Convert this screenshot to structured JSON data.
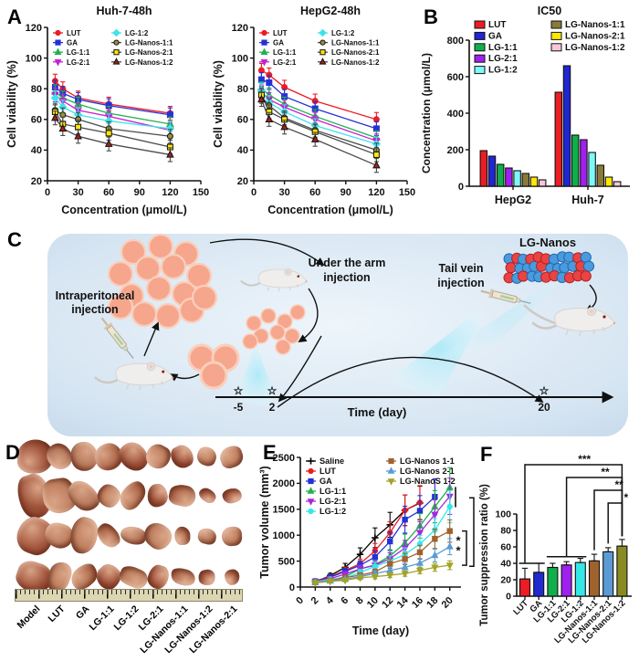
{
  "panels": {
    "a": "A",
    "b": "B",
    "c": "C",
    "d": "D",
    "e": "E",
    "f": "F"
  },
  "chart_data": [
    {
      "id": "huh7",
      "type": "line",
      "title": "Huh-7-48h",
      "xlabel": "Concentration (μmol/L)",
      "ylabel": "Cell viability (%)",
      "xlim": [
        0,
        150
      ],
      "xticks": [
        0,
        30,
        60,
        90,
        120,
        150
      ],
      "ylim": [
        20,
        120
      ],
      "yticks": [
        20,
        40,
        60,
        80,
        100,
        120
      ],
      "x": [
        7.5,
        15,
        30,
        60,
        120
      ],
      "err": 4.5,
      "legend_split": 4,
      "series": [
        {
          "name": "LUT",
          "color": "#ed1c24",
          "marker": "circle",
          "y": [
            85,
            80,
            74,
            70,
            64
          ]
        },
        {
          "name": "GA",
          "color": "#2432d5",
          "marker": "square",
          "y": [
            81,
            77,
            73,
            69,
            63
          ]
        },
        {
          "name": "LG-1:1",
          "color": "#22b14c",
          "marker": "triangle-up",
          "y": [
            78,
            74,
            70,
            64,
            57
          ]
        },
        {
          "name": "LG-2:1",
          "color": "#c71fd6",
          "marker": "triangle-down",
          "y": [
            76,
            72,
            66,
            62,
            53
          ]
        },
        {
          "name": "LG-1:2",
          "color": "#3fe3ea",
          "marker": "diamond",
          "y": [
            74,
            68,
            63,
            59,
            54
          ]
        },
        {
          "name": "LG-Nanos-1:1",
          "color": "#9a8f3d",
          "line": "#4a4a4a",
          "edge": "#111",
          "marker": "circle",
          "y": [
            66,
            63,
            60,
            54,
            49
          ]
        },
        {
          "name": "LG-Nanos-2:1",
          "color": "#ffe800",
          "line": "#4a4a4a",
          "edge": "#111",
          "marker": "square",
          "y": [
            65,
            57,
            55,
            51,
            42
          ]
        },
        {
          "name": "LG-Nanos-1:2",
          "color": "#a32020",
          "line": "#4a4a4a",
          "edge": "#111",
          "marker": "triangle-up",
          "y": [
            61,
            54,
            49,
            44,
            37
          ]
        }
      ]
    },
    {
      "id": "hepg2",
      "type": "line",
      "title": "HepG2-48h",
      "xlabel": "Concentration (μmol/L)",
      "ylabel": "Cell viability (%)",
      "xlim": [
        0,
        150
      ],
      "xticks": [
        0,
        30,
        60,
        90,
        120,
        150
      ],
      "ylim": [
        20,
        120
      ],
      "yticks": [
        20,
        40,
        60,
        80,
        100,
        120
      ],
      "x": [
        7.5,
        15,
        30,
        60,
        120
      ],
      "err": 4.5,
      "legend_split": 4,
      "series": [
        {
          "name": "LUT",
          "color": "#ed1c24",
          "marker": "circle",
          "y": [
            92,
            89,
            81,
            72,
            60
          ]
        },
        {
          "name": "GA",
          "color": "#2432d5",
          "marker": "square",
          "y": [
            86,
            84,
            75,
            67,
            54
          ]
        },
        {
          "name": "LG-1:1",
          "color": "#22b14c",
          "marker": "triangle-up",
          "y": [
            80,
            76,
            70,
            62,
            48
          ]
        },
        {
          "name": "LG-2:1",
          "color": "#c71fd6",
          "marker": "triangle-down",
          "y": [
            78,
            73,
            68,
            60,
            46
          ]
        },
        {
          "name": "LG-1:2",
          "color": "#3fe3ea",
          "marker": "diamond",
          "y": [
            79,
            71,
            65,
            56,
            44
          ]
        },
        {
          "name": "LG-Nanos-1:1",
          "color": "#9a8f3d",
          "line": "#4a4a4a",
          "edge": "#111",
          "marker": "circle",
          "y": [
            75,
            69,
            61,
            53,
            40
          ]
        },
        {
          "name": "LG-Nanos-2:1",
          "color": "#ffe800",
          "line": "#4a4a4a",
          "edge": "#111",
          "marker": "square",
          "y": [
            76,
            65,
            60,
            52,
            37
          ]
        },
        {
          "name": "LG-Nanos-1:2",
          "color": "#a32020",
          "line": "#4a4a4a",
          "edge": "#111",
          "marker": "triangle-up",
          "y": [
            73,
            60,
            55,
            47,
            30
          ]
        }
      ]
    },
    {
      "id": "ic50",
      "type": "bar",
      "title": "IC50",
      "ylabel": "Concentration (μmol/L)",
      "ylim": [
        0,
        800
      ],
      "yticks": [
        0,
        200,
        400,
        600,
        800
      ],
      "categories": [
        "HepG2",
        "Huh-7"
      ],
      "legend_split": 5,
      "series": [
        {
          "name": "LUT",
          "color": "#ed1c24",
          "values": [
            195,
            515
          ]
        },
        {
          "name": "GA",
          "color": "#2026d2",
          "values": [
            165,
            660
          ]
        },
        {
          "name": "LG-1:1",
          "color": "#0faf4b",
          "values": [
            120,
            280
          ]
        },
        {
          "name": "LG-2:1",
          "color": "#a020f0",
          "values": [
            100,
            255
          ]
        },
        {
          "name": "LG-1:2",
          "color": "#7df9f9",
          "values": [
            85,
            185
          ]
        },
        {
          "name": "LG-Nanos-1:1",
          "color": "#8a7a3a",
          "values": [
            70,
            115
          ]
        },
        {
          "name": "LG-Nanos-2:1",
          "color": "#ffe800",
          "values": [
            50,
            50
          ]
        },
        {
          "name": "LG-Nanos-1:2",
          "color": "#f9c6d9",
          "values": [
            35,
            25
          ]
        }
      ]
    },
    {
      "id": "tumor_volume",
      "type": "line",
      "title": "",
      "xlabel": "Time (day)",
      "ylabel": "Tumor volume (mm³)",
      "xlim": [
        0,
        21.5
      ],
      "xticks": [
        0,
        2,
        4,
        6,
        8,
        10,
        12,
        14,
        16,
        18,
        20
      ],
      "rot_xticks": true,
      "ylim": [
        0,
        2500
      ],
      "yticks": [
        0,
        500,
        1000,
        1500,
        2000,
        2500
      ],
      "err_frac": 0.2,
      "legend_split": 6,
      "series": [
        {
          "name": "Saline",
          "color": "#000000",
          "marker": "plus",
          "x": [
            2,
            4,
            6,
            8,
            10,
            12,
            14,
            16
          ],
          "y": [
            100,
            220,
            380,
            630,
            950,
            1200,
            1480,
            1620
          ]
        },
        {
          "name": "LUT",
          "color": "#ed1c24",
          "marker": "circle",
          "x": [
            2,
            4,
            6,
            8,
            10,
            12,
            14,
            16
          ],
          "y": [
            120,
            200,
            320,
            450,
            700,
            1050,
            1480,
            1630
          ]
        },
        {
          "name": "GA",
          "color": "#2432d5",
          "marker": "square",
          "x": [
            2,
            4,
            6,
            8,
            10,
            12,
            14,
            16,
            18
          ],
          "y": [
            110,
            190,
            300,
            420,
            580,
            880,
            1300,
            1470,
            1740
          ]
        },
        {
          "name": "LG-1:1",
          "color": "#22b14c",
          "marker": "triangle-up",
          "x": [
            2,
            4,
            6,
            8,
            10,
            12,
            14,
            16,
            18,
            20
          ],
          "y": [
            100,
            130,
            200,
            350,
            430,
            600,
            850,
            1180,
            1550,
            1920
          ]
        },
        {
          "name": "LG-2:1",
          "color": "#a428e0",
          "marker": "triangle-down",
          "x": [
            2,
            4,
            6,
            8,
            10,
            12,
            14,
            16,
            18,
            20
          ],
          "y": [
            100,
            160,
            250,
            350,
            420,
            550,
            750,
            1050,
            1400,
            1750
          ]
        },
        {
          "name": "LG-1:2",
          "color": "#35e8e8",
          "marker": "circle",
          "x": [
            2,
            4,
            6,
            8,
            10,
            12,
            14,
            16,
            18,
            20
          ],
          "y": [
            100,
            150,
            180,
            280,
            400,
            500,
            630,
            830,
            1100,
            1550
          ]
        },
        {
          "name": "LG-Nanos 1-1",
          "color": "#a0622d",
          "marker": "square",
          "x": [
            2,
            4,
            6,
            8,
            10,
            12,
            14,
            16,
            18,
            20
          ],
          "y": [
            90,
            130,
            180,
            230,
            290,
            450,
            540,
            670,
            930,
            1080
          ]
        },
        {
          "name": "LG-Nanos 2-1",
          "color": "#5b9bd5",
          "marker": "triangle-up",
          "x": [
            2,
            4,
            6,
            8,
            10,
            12,
            14,
            16,
            18,
            20
          ],
          "y": [
            90,
            120,
            150,
            200,
            260,
            320,
            380,
            460,
            610,
            780
          ]
        },
        {
          "name": "LG-NanoS 1-2",
          "color": "#a3a329",
          "marker": "triangle-down",
          "x": [
            2,
            4,
            6,
            8,
            10,
            12,
            14,
            16,
            18,
            20
          ],
          "y": [
            80,
            110,
            130,
            180,
            200,
            230,
            260,
            320,
            380,
            420
          ]
        }
      ],
      "sig_right": [
        {
          "y1": 1720,
          "y2": 400,
          "label": ""
        },
        {
          "y1": 1080,
          "y2": 420,
          "label": "**"
        }
      ],
      "sig_cap": {
        "y1": 1930,
        "y2": 1540
      }
    },
    {
      "id": "suppression",
      "type": "bar",
      "title": "",
      "ylabel": "Tumor suppression ratio (%)",
      "ylim": [
        0,
        100
      ],
      "yticks": [
        0,
        20,
        40,
        60,
        80,
        100
      ],
      "categories": [
        "LUT",
        "GA",
        "LG-1:1",
        "LG-2:1",
        "LG-1:2",
        "LG-Nanos-1:1",
        "LG-Nanos-2:1",
        "LG-Nanos-1:2"
      ],
      "values": [
        21,
        29,
        35,
        38,
        41,
        43,
        54,
        61
      ],
      "errors": [
        13,
        11,
        5,
        4,
        5,
        8,
        5,
        8
      ],
      "colors": [
        "#ed1c24",
        "#1f2bd1",
        "#0faf4b",
        "#a020f0",
        "#35e8e8",
        "#a0622d",
        "#5b9bd5",
        "#8a8a23"
      ],
      "sig": [
        {
          "i1": 0,
          "i2": 7,
          "label": "***",
          "foot": [
            0,
            1
          ],
          "drop1": 40
        },
        {
          "i1": 3,
          "i2": 7,
          "label": "**",
          "foot": [
            2,
            4
          ],
          "drop1": 48
        },
        {
          "i1": 5,
          "i2": 7,
          "label": "**",
          "drop1": 56
        },
        {
          "i1": 6,
          "i2": 7,
          "label": "*",
          "drop1": 64
        }
      ]
    }
  ],
  "diagram": {
    "labels": {
      "intraperitoneal_1": "Intraperitoneal",
      "intraperitoneal_2": "injection",
      "under_arm_1": "Under the arm",
      "under_arm_2": "injection",
      "tail_vein_1": "Tail vein",
      "tail_vein_2": "injection",
      "lg_nanos": "LG-Nanos",
      "time_label": "Time (day)",
      "tick_m5": "-5",
      "tick_2": "2",
      "tick_20": "20",
      "star": "☆"
    },
    "colors": {
      "cell": "#f6a68c",
      "nano_red": "#e84444",
      "nano_blue": "#4a9ade",
      "box": "#cfe1f0"
    }
  },
  "tumor_panel": {
    "labels": [
      "Model",
      "LUT",
      "GA",
      "LG-1:1",
      "LG-1:2",
      "LG-2:1",
      "LG-Nanos-1:1",
      "LG-Nanos-1:2",
      "LG-Nanos-2:1"
    ],
    "rows": 4,
    "relative_sizes": [
      1.0,
      0.92,
      0.88,
      0.8,
      0.7,
      0.75,
      0.66,
      0.5,
      0.62
    ],
    "palette": [
      "#c08060",
      "#b06a4c",
      "#a85a42",
      "#b87a5c",
      "#9e5038"
    ]
  }
}
